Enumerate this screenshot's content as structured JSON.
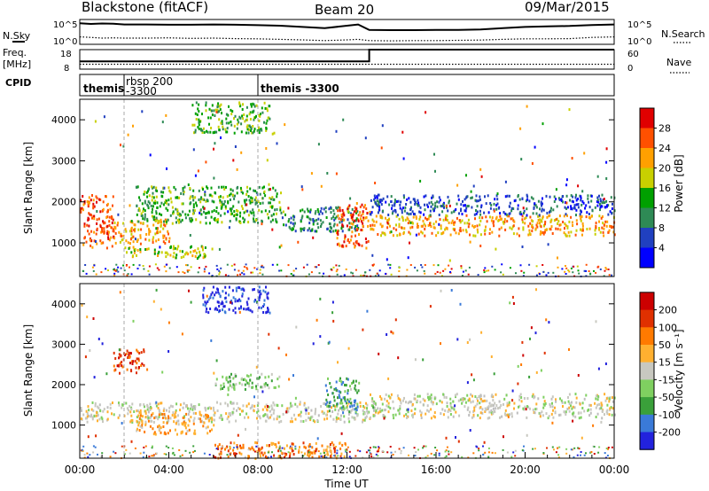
{
  "header": {
    "station": "Blackstone (fitACF)",
    "beam": "Beam 20",
    "date": "09/Mar/2015"
  },
  "colors": {
    "power_scale": [
      "#0000ff",
      "#2040c0",
      "#2e8a55",
      "#00a000",
      "#c8d000",
      "#ffa000",
      "#ff5000",
      "#e00000"
    ],
    "velocity_scale": [
      "#2222dd",
      "#3a7ad8",
      "#3aa03a",
      "#7fd060",
      "#c8c8c0",
      "#ffb030",
      "#ff7a00",
      "#e03000",
      "#cc0000"
    ],
    "ground_scatter": "#bebebe"
  },
  "chart_data": [
    {
      "type": "line",
      "panel": "nsky-nsearch",
      "ylabel_left": "N.Sky",
      "ylabel_right": "N.Search",
      "left_ticks": [
        "10^5",
        "10^0"
      ],
      "right_ticks": [
        "10^5",
        "10^0"
      ],
      "x_hours": [
        0,
        0.5,
        1,
        1.5,
        2,
        3,
        4,
        5,
        6,
        7,
        8,
        9,
        10,
        11,
        12,
        12.5,
        13,
        14,
        15,
        16,
        17,
        18,
        19,
        20,
        21,
        22,
        23,
        24
      ],
      "nsky": [
        0.85,
        0.82,
        0.84,
        0.83,
        0.8,
        0.8,
        0.79,
        0.79,
        0.8,
        0.79,
        0.77,
        0.75,
        0.7,
        0.65,
        0.75,
        0.8,
        0.58,
        0.57,
        0.57,
        0.58,
        0.58,
        0.6,
        0.65,
        0.7,
        0.72,
        0.74,
        0.78,
        0.8
      ],
      "nsearch": [
        0.3,
        0.28,
        0.25,
        0.26,
        0.25,
        0.25,
        0.26,
        0.24,
        0.25,
        0.23,
        0.22,
        0.2,
        0.18,
        0.15,
        0.18,
        0.2,
        0.15,
        0.14,
        0.15,
        0.15,
        0.16,
        0.17,
        0.2,
        0.22,
        0.22,
        0.23,
        0.28,
        0.3
      ]
    },
    {
      "type": "line",
      "panel": "freq-nave",
      "ylabel_left_top": "Freq.",
      "ylabel_left_bottom": "[MHz]",
      "ylabel_right": "Nave",
      "left_ticks": [
        "18",
        "8"
      ],
      "right_ticks": [
        "60",
        "0"
      ],
      "ylim_freq": [
        8,
        18
      ],
      "ylim_nave": [
        0,
        60
      ],
      "freq_x": [
        0,
        13,
        13,
        24
      ],
      "freq_y": [
        12,
        12,
        18,
        18
      ],
      "nave_x": [
        0,
        24
      ],
      "nave_y": [
        15,
        15
      ]
    },
    {
      "type": "table",
      "panel": "cpid",
      "label": "CPID",
      "segments": [
        {
          "start": 0,
          "end": 1.6,
          "name": "themis",
          "sub": ""
        },
        {
          "start": 1.6,
          "end": 8,
          "name": "rbsp 200",
          "sub": "-3300"
        },
        {
          "start": 8,
          "end": 24,
          "name": "themis  -3300",
          "sub": ""
        }
      ]
    },
    {
      "type": "heatmap",
      "panel": "power",
      "ylabel": "Slant Range [km]",
      "ylim": [
        180,
        4500
      ],
      "yticks": [
        1000,
        2000,
        3000,
        4000
      ],
      "colorbar_label": "Power [dB]",
      "colorbar_ticks": [
        28,
        24,
        20,
        16,
        12,
        8,
        4
      ],
      "blobs": [
        {
          "x0": 0,
          "x1": 1.5,
          "y0": 900,
          "y1": 2200,
          "level": 6
        },
        {
          "x0": 1.5,
          "x1": 4,
          "y0": 1000,
          "y1": 1600,
          "level": 5
        },
        {
          "x0": 2.5,
          "x1": 9,
          "y0": 1500,
          "y1": 2400,
          "level": 3
        },
        {
          "x0": 2,
          "x1": 6,
          "y0": 650,
          "y1": 950,
          "level": 4
        },
        {
          "x0": 5,
          "x1": 8.5,
          "y0": 3700,
          "y1": 4450,
          "level": 3
        },
        {
          "x0": 9,
          "x1": 12.5,
          "y0": 1300,
          "y1": 1900,
          "level": 2
        },
        {
          "x0": 11.5,
          "x1": 13,
          "y0": 900,
          "y1": 2000,
          "level": 6
        },
        {
          "x0": 13,
          "x1": 24,
          "y0": 1200,
          "y1": 1700,
          "level": 5
        },
        {
          "x0": 13,
          "x1": 24,
          "y0": 1700,
          "y1": 2200,
          "level": 1
        }
      ]
    },
    {
      "type": "heatmap",
      "panel": "velocity",
      "ylabel": "Slant Range [km]",
      "ylim": [
        180,
        4500
      ],
      "yticks": [
        1000,
        2000,
        3000,
        4000
      ],
      "colorbar_label": "Velocity [m s⁻¹]",
      "colorbar_ticks": [
        200,
        100,
        50,
        15,
        -15,
        -50,
        -100,
        -200
      ],
      "blobs": [
        {
          "x0": 0,
          "x1": 13,
          "y0": 1100,
          "y1": 1600,
          "level": 4
        },
        {
          "x0": 13,
          "x1": 24,
          "y0": 1200,
          "y1": 1800,
          "level": 4
        },
        {
          "x0": 1.5,
          "x1": 3,
          "y0": 2300,
          "y1": 2900,
          "level": 7
        },
        {
          "x0": 2.5,
          "x1": 6,
          "y0": 800,
          "y1": 1300,
          "level": 5
        },
        {
          "x0": 6,
          "x1": 9,
          "y0": 1900,
          "y1": 2300,
          "level": 3
        },
        {
          "x0": 5.5,
          "x1": 8.5,
          "y0": 3800,
          "y1": 4450,
          "level": 0
        },
        {
          "x0": 11,
          "x1": 12.5,
          "y0": 1300,
          "y1": 2200,
          "level": 2
        },
        {
          "x0": 6,
          "x1": 12,
          "y0": 200,
          "y1": 600,
          "level": 6
        }
      ]
    }
  ],
  "time_axis": {
    "xlabel": "Time UT",
    "ticks": [
      "00:00",
      "04:00",
      "08:00",
      "12:00",
      "16:00",
      "20:00",
      "00:00"
    ]
  }
}
